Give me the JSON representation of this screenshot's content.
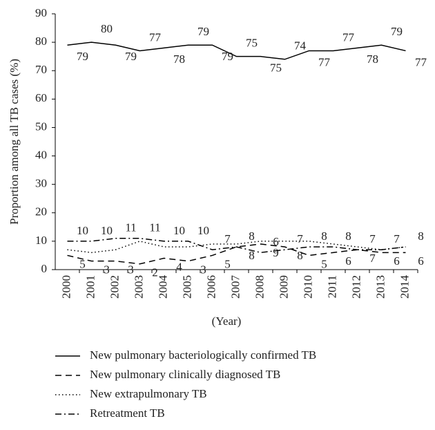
{
  "chart_data": {
    "type": "line",
    "y_label": "Proportion among all TB cases (%)",
    "x_label": "(Year)",
    "categories": [
      "2000",
      "2001",
      "2002",
      "2003",
      "2004",
      "2005",
      "2006",
      "2007",
      "2008",
      "2009",
      "2010",
      "2011",
      "2012",
      "2013",
      "2014"
    ],
    "ylim": [
      0,
      90
    ],
    "yticks": [
      0,
      10,
      20,
      30,
      40,
      50,
      60,
      70,
      80,
      90
    ],
    "series": [
      {
        "name": "New pulmonary bacteriologically confirmed TB",
        "color": "#000000",
        "dash": "none",
        "data_labels": true,
        "values": [
          79,
          80,
          79,
          77,
          78,
          79,
          79,
          75,
          75,
          74,
          77,
          77,
          78,
          79,
          77
        ]
      },
      {
        "name": "New pulmonary clinically diagnosed TB",
        "color": "#000000",
        "dash": "9,6",
        "data_labels": true,
        "values": [
          5,
          3,
          3,
          2,
          4,
          3,
          5,
          8,
          9,
          8,
          5,
          6,
          7,
          6,
          6
        ]
      },
      {
        "name": "New extrapulmonary TB",
        "color": "#000000",
        "dash": "1.5,3.5",
        "data_labels": false,
        "values": [
          7,
          6,
          7,
          10,
          8,
          8,
          9,
          9,
          10,
          10,
          10,
          9,
          8,
          7,
          8
        ]
      },
      {
        "name": "Retreatment TB",
        "color": "#000000",
        "dash": "9,4,2,4",
        "data_labels": true,
        "values": [
          10,
          10,
          11,
          11,
          10,
          10,
          7,
          8,
          6,
          7,
          8,
          8,
          7,
          7,
          8
        ]
      }
    ]
  }
}
